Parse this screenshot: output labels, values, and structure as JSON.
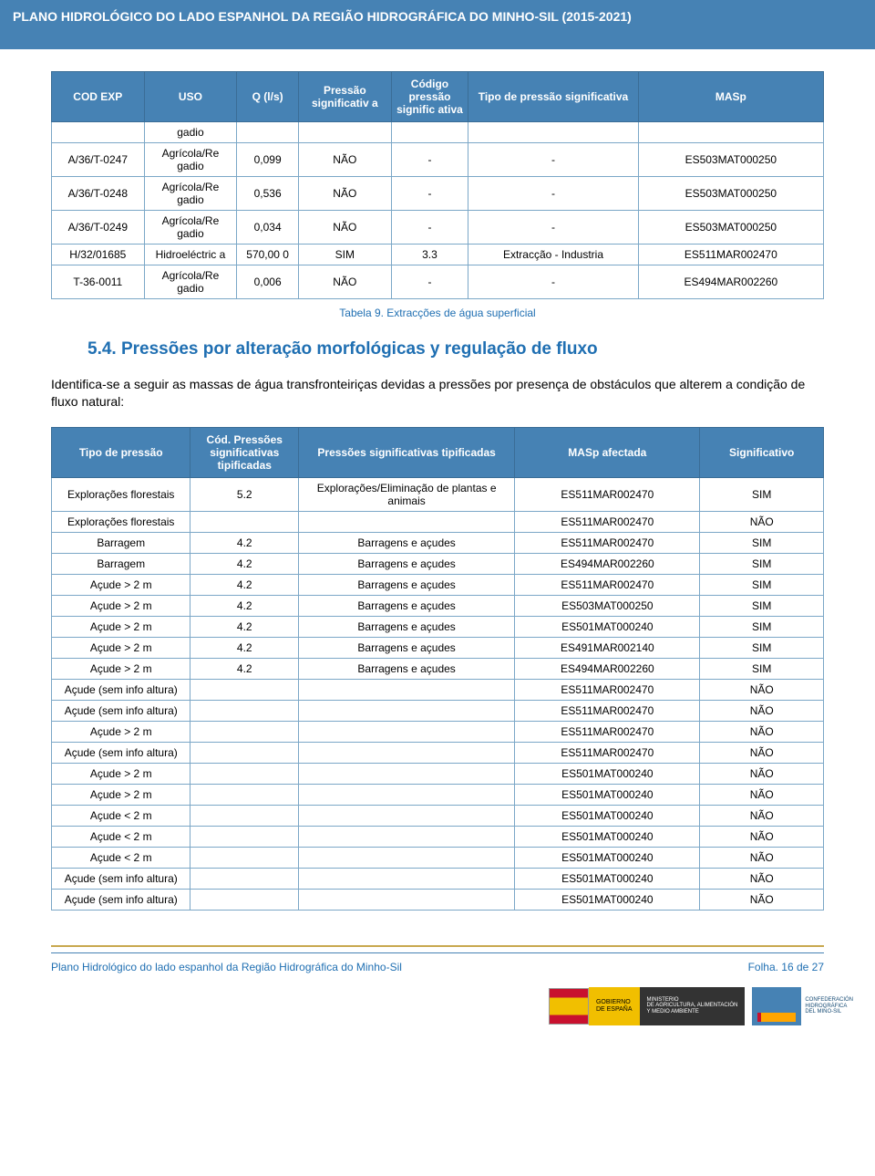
{
  "header": {
    "title": "PLANO HIDROLÓGICO DO LADO ESPANHOL DA REGIÃO HIDROGRÁFICA DO MINHO-SIL (2015-2021)"
  },
  "table1": {
    "headers": [
      "COD EXP",
      "USO",
      "Q (l/s)",
      "Pressão significativ a",
      "Código pressão signific ativa",
      "Tipo de pressão significativa",
      "MASp"
    ],
    "rows": [
      [
        "",
        "gadio",
        "",
        "",
        "",
        "",
        ""
      ],
      [
        "A/36/T-0247",
        "Agrícola/Re gadio",
        "0,099",
        "NÃO",
        "-",
        "-",
        "ES503MAT000250"
      ],
      [
        "A/36/T-0248",
        "Agrícola/Re gadio",
        "0,536",
        "NÃO",
        "-",
        "-",
        "ES503MAT000250"
      ],
      [
        "A/36/T-0249",
        "Agrícola/Re gadio",
        "0,034",
        "NÃO",
        "-",
        "-",
        "ES503MAT000250"
      ],
      [
        "H/32/01685",
        "Hidroeléctric a",
        "570,00 0",
        "SIM",
        "3.3",
        "Extracção - Industria",
        "ES511MAR002470"
      ],
      [
        "T-36-0011",
        "Agrícola/Re gadio",
        "0,006",
        "NÃO",
        "-",
        "-",
        "ES494MAR002260"
      ]
    ],
    "caption": "Tabela 9. Extracções de água superficial"
  },
  "section": {
    "title": "5.4. Pressões por alteração morfológicas y regulação de fluxo",
    "lead": "Identifica-se a seguir as massas de água transfronteiriças devidas a pressões por presença de obstáculos que alterem a condição de fluxo natural:"
  },
  "table2": {
    "headers": [
      "Tipo de pressão",
      "Cód. Pressões significativas tipificadas",
      "Pressões  significativas tipificadas",
      "MASp afectada",
      "Significativo"
    ],
    "rows": [
      [
        "Explorações florestais",
        "5.2",
        "Explorações/Eliminação de plantas e animais",
        "ES511MAR002470",
        "SIM"
      ],
      [
        "Explorações florestais",
        "",
        "",
        "ES511MAR002470",
        "NÃO"
      ],
      [
        "Barragem",
        "4.2",
        "Barragens e açudes",
        "ES511MAR002470",
        "SIM"
      ],
      [
        "Barragem",
        "4.2",
        "Barragens e açudes",
        "ES494MAR002260",
        "SIM"
      ],
      [
        "Açude > 2 m",
        "4.2",
        "Barragens e açudes",
        "ES511MAR002470",
        "SIM"
      ],
      [
        "Açude > 2 m",
        "4.2",
        "Barragens e açudes",
        "ES503MAT000250",
        "SIM"
      ],
      [
        "Açude > 2 m",
        "4.2",
        "Barragens e açudes",
        "ES501MAT000240",
        "SIM"
      ],
      [
        "Açude > 2 m",
        "4.2",
        "Barragens e açudes",
        "ES491MAR002140",
        "SIM"
      ],
      [
        "Açude > 2 m",
        "4.2",
        "Barragens e açudes",
        "ES494MAR002260",
        "SIM"
      ],
      [
        "Açude (sem info altura)",
        "",
        "",
        "ES511MAR002470",
        "NÃO"
      ],
      [
        "Açude (sem info altura)",
        "",
        "",
        "ES511MAR002470",
        "NÃO"
      ],
      [
        "Açude > 2 m",
        "",
        "",
        "ES511MAR002470",
        "NÃO"
      ],
      [
        "Açude (sem info altura)",
        "",
        "",
        "ES511MAR002470",
        "NÃO"
      ],
      [
        "Açude > 2 m",
        "",
        "",
        "ES501MAT000240",
        "NÃO"
      ],
      [
        "Açude > 2 m",
        "",
        "",
        "ES501MAT000240",
        "NÃO"
      ],
      [
        "Açude < 2 m",
        "",
        "",
        "ES501MAT000240",
        "NÃO"
      ],
      [
        "Açude < 2 m",
        "",
        "",
        "ES501MAT000240",
        "NÃO"
      ],
      [
        "Açude < 2 m",
        "",
        "",
        "ES501MAT000240",
        "NÃO"
      ],
      [
        "Açude (sem info altura)",
        "",
        "",
        "ES501MAT000240",
        "NÃO"
      ],
      [
        "Açude (sem info altura)",
        "",
        "",
        "ES501MAT000240",
        "NÃO"
      ]
    ]
  },
  "footer": {
    "left": "Plano Hidrológico do lado espanhol da Região Hidrográfica do Minho-Sil",
    "right_label": "Folha. ",
    "right_page": "16 de 27",
    "gob": "GOBIERNO\nDE ESPAÑA",
    "min": "MINISTERIO\nDE AGRICULTURA, ALIMENTACIÓN\nY MEDIO AMBIENTE",
    "conf": "CONFEDERACIÓN\nHIDROGRÁFICA\nDEL MIÑO-SIL"
  }
}
